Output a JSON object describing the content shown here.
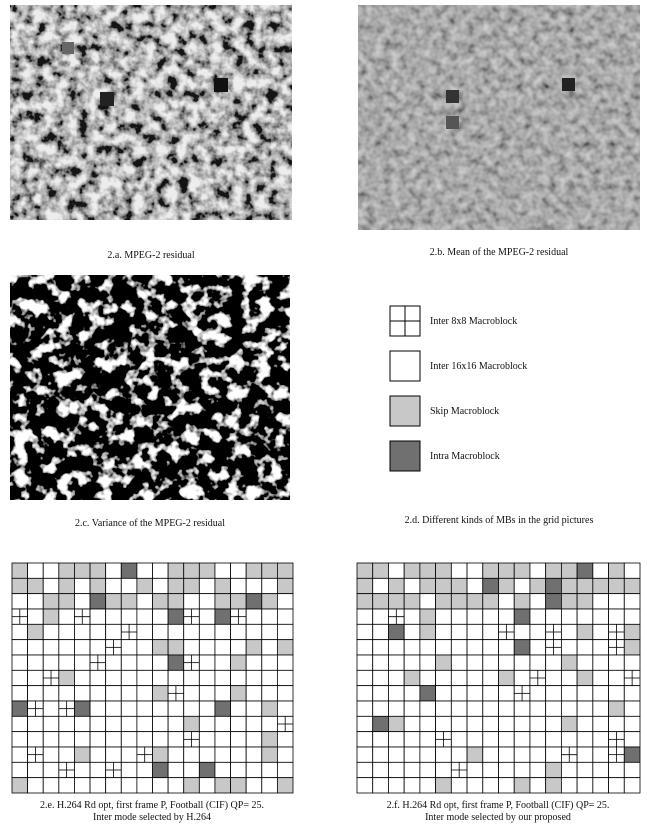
{
  "figure": {
    "captions": {
      "a": "2.a. MPEG-2 residual",
      "b": "2.b. Mean of the MPEG-2 residual",
      "c": "2.c. Variance of the MPEG-2 residual",
      "d": "2.d. Different kinds of MBs in the grid pictures",
      "e": [
        "2.e. H.264 Rd opt, first frame P, Football (CIF) QP= 25.",
        "Inter mode selected by H.264"
      ],
      "f": [
        "2.f. H.264 Rd opt, first frame P, Football (CIF) QP= 25.",
        "Inter mode selected by our proposed"
      ]
    },
    "legend": [
      "Inter 8x8 Macroblock",
      "Inter 16x16 Macroblock",
      "Skip Macroblock",
      "Intra Macroblock"
    ]
  }
}
